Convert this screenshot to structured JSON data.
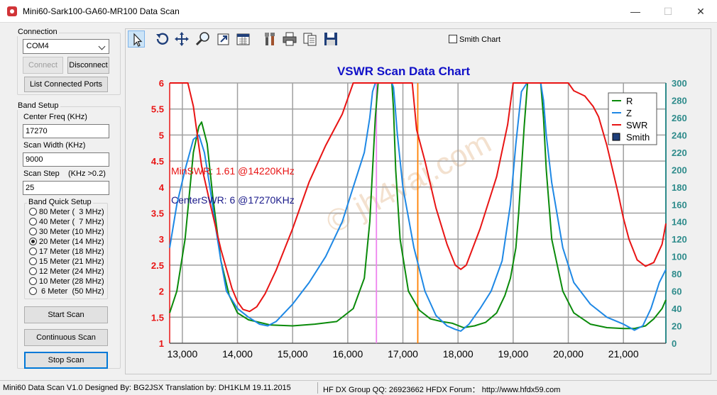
{
  "window": {
    "title": "Mini60-Sark100-GA60-MR100 Data Scan",
    "min_label": "—",
    "max_label": "☐",
    "close_label": "✕"
  },
  "connection": {
    "group_label": "Connection",
    "port": "COM4",
    "connect_label": "Connect",
    "disconnect_label": "Disconnect",
    "list_ports_label": "List Connected Ports"
  },
  "band_setup": {
    "group_label": "Band Setup",
    "center_freq_label": "Center Freq  (KHz)",
    "center_freq_value": "17270",
    "scan_width_label": "Scan Width   (KHz)",
    "scan_width_value": "9000",
    "scan_step_label": "Scan Step",
    "scan_step_hint": "(KHz >0.2)",
    "scan_step_value": "25",
    "quick_setup_label": "Band Quick Setup",
    "bands": [
      {
        "label": "80 Meter (  3 MHz)",
        "selected": false
      },
      {
        "label": "40 Meter (  7 MHz)",
        "selected": false
      },
      {
        "label": "30 Meter (10 MHz)",
        "selected": false
      },
      {
        "label": "20 Meter (14 MHz)",
        "selected": true
      },
      {
        "label": "17 Meter (18 MHz)",
        "selected": false
      },
      {
        "label": "15 Meter (21 MHz)",
        "selected": false
      },
      {
        "label": "12 Meter (24 MHz)",
        "selected": false
      },
      {
        "label": "10 Meter (28 MHz)",
        "selected": false
      },
      {
        "label": " 6 Meter  (50 MHz)",
        "selected": false
      }
    ]
  },
  "scan_buttons": {
    "start": "Start Scan",
    "continuous": "Continuous Scan",
    "stop": "Stop Scan"
  },
  "toolbar": {
    "tools": [
      "pointer-icon",
      "rotate-icon",
      "pan-icon",
      "zoom-icon",
      "export-icon",
      "chart-edit-icon",
      "tools-icon",
      "print-icon",
      "copy-icon",
      "save-icon"
    ],
    "smith_chart_label": "Smith Chart"
  },
  "chart_data": {
    "type": "line",
    "title": "VSWR Scan Data Chart",
    "x_ticks": [
      "13,000",
      "14,000",
      "15,000",
      "16,000",
      "17,000",
      "18,000",
      "19,000",
      "20,000",
      "21,000"
    ],
    "left_ticks": [
      "1",
      "1.5",
      "2",
      "2.5",
      "3",
      "3.5",
      "4",
      "4.5",
      "5",
      "5.5",
      "6"
    ],
    "right_ticks": [
      "0",
      "20",
      "40",
      "60",
      "80",
      "100",
      "120",
      "140",
      "160",
      "180",
      "200",
      "220",
      "240",
      "260",
      "280",
      "300"
    ],
    "xlim": [
      12770,
      21770
    ],
    "ylim_left": [
      1,
      6
    ],
    "ylim_right": [
      0,
      300
    ],
    "grid": true,
    "legend_position": "top-right",
    "legend": [
      "R",
      "Z",
      "SWR",
      "Smith"
    ],
    "annotations": {
      "min_swr": "MinSWR: 1.61 @14220KHz",
      "center_swr": "CenterSWR: 6 @17270KHz"
    },
    "markers": [
      {
        "x": 16520,
        "color": "#ee82ee"
      },
      {
        "x": 17270,
        "color": "#ff8000"
      }
    ],
    "colors": {
      "R": "#0a8a0a",
      "Z": "#1e88e5",
      "SWR": "#e81414",
      "Smith": "#1f3f7a",
      "title": "#1010c8",
      "right_axis": "#2e8b8b"
    },
    "series": [
      {
        "name": "SWR",
        "axis": "left",
        "x": [
          12770,
          12800,
          13000,
          13100,
          13200,
          13350,
          13500,
          13700,
          13900,
          14000,
          14100,
          14220,
          14350,
          14500,
          14700,
          15000,
          15300,
          15600,
          15900,
          16100,
          16300,
          16400,
          16450,
          16470,
          16500,
          16800,
          17150,
          17170,
          17250,
          17400,
          17600,
          17800,
          17950,
          18050,
          18150,
          18400,
          18700,
          18900,
          19000,
          19050,
          19300,
          19500,
          19700,
          19900,
          20000,
          20100,
          20300,
          20450,
          20550,
          20700,
          20900,
          21000,
          21100,
          21250,
          21400,
          21550,
          21700,
          21770
        ],
        "y": [
          6,
          6,
          6,
          6,
          5.55,
          4.4,
          3.7,
          2.8,
          2.05,
          1.8,
          1.65,
          1.61,
          1.7,
          1.95,
          2.4,
          3.2,
          4.1,
          4.8,
          5.4,
          6,
          6,
          6,
          6,
          6,
          6,
          6,
          6,
          6,
          5.1,
          4.5,
          3.6,
          2.9,
          2.5,
          2.42,
          2.5,
          3.2,
          4.2,
          5.2,
          6,
          6,
          6,
          6,
          6,
          6,
          6,
          5.85,
          5.75,
          5.55,
          5.35,
          4.8,
          3.9,
          3.4,
          3.0,
          2.6,
          2.48,
          2.55,
          2.9,
          3.3
        ]
      },
      {
        "name": "Z",
        "axis": "right",
        "x": [
          12770,
          12900,
          13050,
          13200,
          13300,
          13400,
          13500,
          13600,
          13700,
          13800,
          14000,
          14200,
          14400,
          14550,
          14700,
          15000,
          15300,
          15600,
          15900,
          16100,
          16300,
          16400,
          16450,
          16500,
          16550,
          16600,
          16700,
          16750,
          16800,
          16830,
          16850,
          16900,
          17000,
          17200,
          17400,
          17600,
          17800,
          17950,
          18050,
          18200,
          18400,
          18600,
          18800,
          18950,
          19050,
          19150,
          19250,
          19330,
          19370,
          19400,
          19450,
          19500,
          19550,
          19600,
          19700,
          19900,
          20100,
          20400,
          20700,
          21000,
          21200,
          21350,
          21500,
          21650,
          21770
        ],
        "y": [
          110,
          160,
          200,
          235,
          240,
          220,
          180,
          135,
          95,
          60,
          40,
          30,
          22,
          20,
          25,
          45,
          70,
          100,
          140,
          180,
          220,
          260,
          290,
          300,
          300,
          300,
          300,
          300,
          300,
          295,
          280,
          240,
          180,
          110,
          60,
          32,
          20,
          16,
          14,
          22,
          40,
          60,
          95,
          160,
          230,
          290,
          300,
          300,
          300,
          300,
          300,
          300,
          280,
          240,
          185,
          110,
          70,
          45,
          30,
          22,
          15,
          20,
          40,
          70,
          85
        ]
      },
      {
        "name": "R",
        "axis": "right",
        "x": [
          12770,
          12900,
          13050,
          13200,
          13300,
          13350,
          13450,
          13550,
          13700,
          13850,
          14000,
          14200,
          14400,
          14600,
          15000,
          15400,
          15800,
          16100,
          16300,
          16400,
          16450,
          16500,
          16550,
          16580,
          16620,
          16680,
          16740,
          16800,
          16830,
          16870,
          16950,
          17100,
          17300,
          17500,
          17700,
          17900,
          18100,
          18300,
          18500,
          18700,
          18850,
          18950,
          19050,
          19100,
          19150,
          19200,
          19260,
          19320,
          19380,
          19440,
          19480,
          19500,
          19550,
          19600,
          19700,
          19900,
          20100,
          20400,
          20700,
          21000,
          21200,
          21400,
          21550,
          21700,
          21770
        ],
        "y": [
          35,
          60,
          120,
          220,
          250,
          255,
          230,
          170,
          95,
          55,
          35,
          27,
          24,
          21,
          20,
          22,
          25,
          40,
          75,
          140,
          200,
          260,
          300,
          300,
          300,
          300,
          300,
          300,
          270,
          200,
          120,
          60,
          38,
          28,
          25,
          23,
          18,
          20,
          24,
          35,
          55,
          75,
          110,
          150,
          200,
          250,
          300,
          300,
          300,
          300,
          300,
          300,
          260,
          200,
          120,
          60,
          35,
          22,
          18,
          17,
          17,
          20,
          28,
          40,
          50
        ]
      }
    ]
  },
  "status": {
    "left": "Mini60 Data Scan V1.0   Designed By: BG2JSX  Translation by: DH1KLM    19.11.2015",
    "right": "HF DX Group QQ: 26923662  HFDX Forum：  http://www.hfdx59.com"
  }
}
